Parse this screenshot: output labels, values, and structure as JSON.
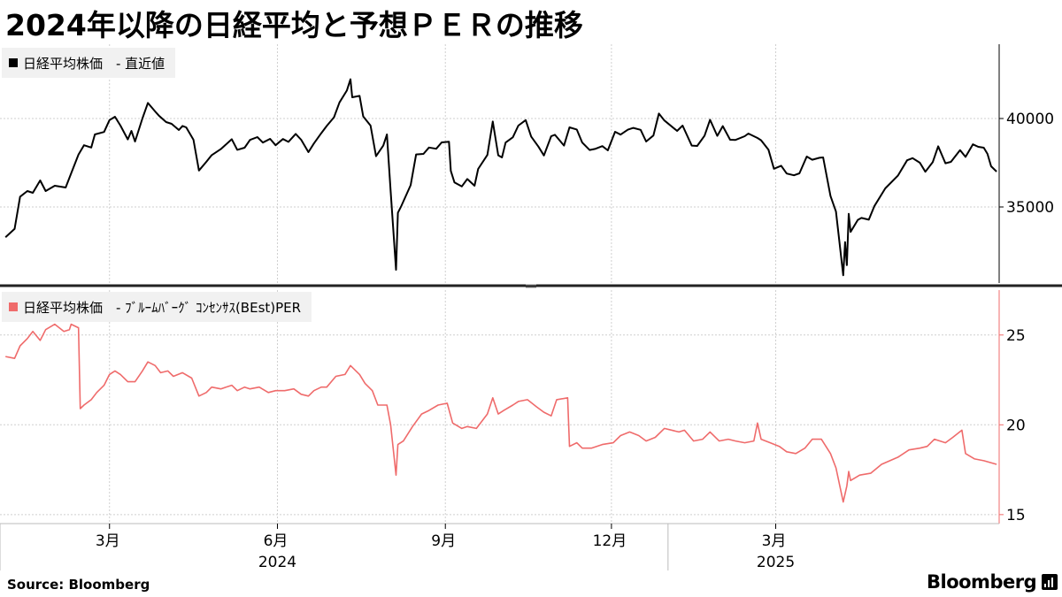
{
  "title": "2024年以降の日経平均と予想ＰＥＲの推移",
  "source": "Source:  Bloomberg",
  "brand": "Bloomberg",
  "colors": {
    "price": "#000000",
    "per": "#ef6b6b",
    "grid": "#cfcfcf",
    "legend_bg": "#f1f1f1"
  },
  "chart_data": [
    {
      "type": "line",
      "panel": "top",
      "legend": "日経平均株価　- 直近値",
      "series": [
        {
          "name": "日経平均株価　- 直近値",
          "color": "#000000"
        }
      ],
      "ylim": [
        30700,
        44200
      ],
      "yticks": [
        35000,
        40000
      ],
      "ytick_labels": [
        "35000",
        "40000"
      ],
      "points": [
        [
          "2024-01-04",
          33290
        ],
        [
          "2024-01-09",
          33760
        ],
        [
          "2024-01-12",
          35580
        ],
        [
          "2024-01-16",
          35900
        ],
        [
          "2024-01-19",
          35800
        ],
        [
          "2024-01-23",
          36500
        ],
        [
          "2024-01-26",
          35900
        ],
        [
          "2024-01-31",
          36200
        ],
        [
          "2024-02-06",
          36100
        ],
        [
          "2024-02-09",
          36900
        ],
        [
          "2024-02-13",
          37960
        ],
        [
          "2024-02-16",
          38490
        ],
        [
          "2024-02-20",
          38360
        ],
        [
          "2024-02-22",
          39100
        ],
        [
          "2024-02-27",
          39240
        ],
        [
          "2024-03-01",
          39910
        ],
        [
          "2024-03-04",
          40100
        ],
        [
          "2024-03-07",
          39600
        ],
        [
          "2024-03-11",
          38820
        ],
        [
          "2024-03-13",
          39300
        ],
        [
          "2024-03-15",
          38700
        ],
        [
          "2024-03-19",
          40000
        ],
        [
          "2024-03-22",
          40880
        ],
        [
          "2024-03-26",
          40400
        ],
        [
          "2024-03-28",
          40170
        ],
        [
          "2024-04-01",
          39800
        ],
        [
          "2024-04-04",
          39700
        ],
        [
          "2024-04-08",
          39350
        ],
        [
          "2024-04-10",
          39580
        ],
        [
          "2024-04-12",
          39500
        ],
        [
          "2024-04-16",
          38800
        ],
        [
          "2024-04-19",
          37060
        ],
        [
          "2024-04-23",
          37550
        ],
        [
          "2024-04-26",
          37930
        ],
        [
          "2024-05-01",
          38270
        ],
        [
          "2024-05-07",
          38830
        ],
        [
          "2024-05-10",
          38230
        ],
        [
          "2024-05-14",
          38350
        ],
        [
          "2024-05-17",
          38790
        ],
        [
          "2024-05-21",
          38950
        ],
        [
          "2024-05-24",
          38640
        ],
        [
          "2024-05-28",
          38850
        ],
        [
          "2024-05-31",
          38490
        ],
        [
          "2024-06-04",
          38840
        ],
        [
          "2024-06-07",
          38680
        ],
        [
          "2024-06-11",
          39130
        ],
        [
          "2024-06-14",
          38800
        ],
        [
          "2024-06-18",
          38100
        ],
        [
          "2024-06-21",
          38590
        ],
        [
          "2024-06-25",
          39170
        ],
        [
          "2024-06-28",
          39580
        ],
        [
          "2024-07-02",
          40070
        ],
        [
          "2024-07-05",
          40910
        ],
        [
          "2024-07-09",
          41580
        ],
        [
          "2024-07-11",
          42220
        ],
        [
          "2024-07-12",
          41200
        ],
        [
          "2024-07-16",
          41280
        ],
        [
          "2024-07-18",
          40120
        ],
        [
          "2024-07-22",
          39600
        ],
        [
          "2024-07-25",
          37870
        ],
        [
          "2024-07-29",
          38470
        ],
        [
          "2024-07-31",
          39100
        ],
        [
          "2024-08-02",
          35900
        ],
        [
          "2024-08-05",
          31450
        ],
        [
          "2024-08-06",
          34670
        ],
        [
          "2024-08-08",
          35080
        ],
        [
          "2024-08-13",
          36230
        ],
        [
          "2024-08-16",
          37970
        ],
        [
          "2024-08-20",
          38000
        ],
        [
          "2024-08-23",
          38360
        ],
        [
          "2024-08-27",
          38290
        ],
        [
          "2024-08-30",
          38650
        ],
        [
          "2024-09-03",
          38690
        ],
        [
          "2024-09-04",
          37040
        ],
        [
          "2024-09-06",
          36390
        ],
        [
          "2024-09-10",
          36160
        ],
        [
          "2024-09-13",
          36580
        ],
        [
          "2024-09-17",
          36200
        ],
        [
          "2024-09-19",
          37150
        ],
        [
          "2024-09-24",
          37940
        ],
        [
          "2024-09-27",
          39830
        ],
        [
          "2024-09-30",
          37920
        ],
        [
          "2024-10-02",
          37800
        ],
        [
          "2024-10-04",
          38640
        ],
        [
          "2024-10-08",
          38940
        ],
        [
          "2024-10-11",
          39600
        ],
        [
          "2024-10-15",
          39910
        ],
        [
          "2024-10-18",
          38980
        ],
        [
          "2024-10-22",
          38410
        ],
        [
          "2024-10-25",
          37910
        ],
        [
          "2024-10-29",
          39000
        ],
        [
          "2024-10-31",
          39080
        ],
        [
          "2024-11-05",
          38470
        ],
        [
          "2024-11-08",
          39500
        ],
        [
          "2024-11-12",
          39380
        ],
        [
          "2024-11-15",
          38640
        ],
        [
          "2024-11-19",
          38220
        ],
        [
          "2024-11-22",
          38280
        ],
        [
          "2024-11-26",
          38440
        ],
        [
          "2024-11-29",
          38200
        ],
        [
          "2024-12-03",
          39250
        ],
        [
          "2024-12-06",
          39090
        ],
        [
          "2024-12-10",
          39370
        ],
        [
          "2024-12-13",
          39470
        ],
        [
          "2024-12-17",
          39360
        ],
        [
          "2024-12-20",
          38700
        ],
        [
          "2024-12-24",
          39040
        ],
        [
          "2024-12-27",
          40280
        ],
        [
          "2024-12-30",
          39890
        ],
        [
          "2025-01-06",
          39300
        ],
        [
          "2025-01-09",
          39600
        ],
        [
          "2025-01-14",
          38470
        ],
        [
          "2025-01-17",
          38450
        ],
        [
          "2025-01-21",
          39030
        ],
        [
          "2025-01-24",
          39930
        ],
        [
          "2025-01-28",
          39020
        ],
        [
          "2025-01-31",
          39570
        ],
        [
          "2025-02-04",
          38800
        ],
        [
          "2025-02-07",
          38790
        ],
        [
          "2025-02-12",
          39000
        ],
        [
          "2025-02-14",
          39150
        ],
        [
          "2025-02-19",
          38900
        ],
        [
          "2025-02-21",
          38770
        ],
        [
          "2025-02-25",
          38240
        ],
        [
          "2025-02-28",
          37160
        ],
        [
          "2025-03-04",
          37330
        ],
        [
          "2025-03-07",
          36890
        ],
        [
          "2025-03-11",
          36790
        ],
        [
          "2025-03-14",
          36900
        ],
        [
          "2025-03-18",
          37850
        ],
        [
          "2025-03-21",
          37670
        ],
        [
          "2025-03-25",
          37780
        ],
        [
          "2025-03-27",
          37800
        ],
        [
          "2025-03-31",
          35620
        ],
        [
          "2025-04-03",
          34740
        ],
        [
          "2025-04-07",
          31140
        ],
        [
          "2025-04-08",
          33010
        ],
        [
          "2025-04-09",
          31710
        ],
        [
          "2025-04-10",
          34610
        ],
        [
          "2025-04-11",
          33590
        ],
        [
          "2025-04-15",
          34270
        ],
        [
          "2025-04-17",
          34380
        ],
        [
          "2025-04-21",
          34280
        ],
        [
          "2025-04-24",
          35040
        ],
        [
          "2025-04-30",
          36050
        ],
        [
          "2025-05-07",
          36780
        ],
        [
          "2025-05-12",
          37640
        ],
        [
          "2025-05-15",
          37760
        ],
        [
          "2025-05-19",
          37500
        ],
        [
          "2025-05-22",
          36990
        ],
        [
          "2025-05-26",
          37530
        ],
        [
          "2025-05-29",
          38430
        ],
        [
          "2025-06-02",
          37470
        ],
        [
          "2025-06-05",
          37550
        ],
        [
          "2025-06-10",
          38210
        ],
        [
          "2025-06-13",
          37830
        ],
        [
          "2025-06-17",
          38540
        ],
        [
          "2025-06-20",
          38400
        ],
        [
          "2025-06-23",
          38350
        ],
        [
          "2025-06-25",
          38000
        ],
        [
          "2025-06-27",
          37300
        ],
        [
          "2025-06-30",
          37000
        ]
      ]
    },
    {
      "type": "line",
      "panel": "bottom",
      "legend": "日経平均株価　- ﾌﾞﾙｰﾑﾊﾞｰｸﾞ ｺﾝｾﾝｻｽ(BEst)PER",
      "series": [
        {
          "name": "日経平均株価　- ﾌﾞﾙｰﾑﾊﾞｰｸﾞ ｺﾝｾﾝｻｽ(BEst)PER",
          "color": "#ef6b6b"
        }
      ],
      "ylim": [
        14.5,
        27.5
      ],
      "yticks": [
        15,
        20,
        25
      ],
      "ytick_labels": [
        "15",
        "20",
        "25"
      ],
      "points": [
        [
          "2024-01-04",
          23.8
        ],
        [
          "2024-01-09",
          23.7
        ],
        [
          "2024-01-12",
          24.4
        ],
        [
          "2024-01-16",
          24.8
        ],
        [
          "2024-01-19",
          25.2
        ],
        [
          "2024-01-23",
          24.7
        ],
        [
          "2024-01-26",
          25.3
        ],
        [
          "2024-01-31",
          25.6
        ],
        [
          "2024-02-05",
          25.2
        ],
        [
          "2024-02-08",
          25.3
        ],
        [
          "2024-02-09",
          25.6
        ],
        [
          "2024-02-13",
          25.4
        ],
        [
          "2024-02-14",
          20.9
        ],
        [
          "2024-02-16",
          21.1
        ],
        [
          "2024-02-20",
          21.4
        ],
        [
          "2024-02-23",
          21.8
        ],
        [
          "2024-02-27",
          22.2
        ],
        [
          "2024-03-01",
          22.8
        ],
        [
          "2024-03-04",
          23.0
        ],
        [
          "2024-03-07",
          22.8
        ],
        [
          "2024-03-11",
          22.4
        ],
        [
          "2024-03-15",
          22.4
        ],
        [
          "2024-03-19",
          23.0
        ],
        [
          "2024-03-22",
          23.5
        ],
        [
          "2024-03-26",
          23.3
        ],
        [
          "2024-03-29",
          22.9
        ],
        [
          "2024-04-02",
          23.0
        ],
        [
          "2024-04-05",
          22.7
        ],
        [
          "2024-04-10",
          22.9
        ],
        [
          "2024-04-15",
          22.6
        ],
        [
          "2024-04-19",
          21.6
        ],
        [
          "2024-04-23",
          21.8
        ],
        [
          "2024-04-26",
          22.1
        ],
        [
          "2024-05-01",
          22.0
        ],
        [
          "2024-05-07",
          22.2
        ],
        [
          "2024-05-10",
          21.9
        ],
        [
          "2024-05-14",
          22.1
        ],
        [
          "2024-05-17",
          22.0
        ],
        [
          "2024-05-22",
          22.1
        ],
        [
          "2024-05-27",
          21.8
        ],
        [
          "2024-05-31",
          21.9
        ],
        [
          "2024-06-05",
          21.9
        ],
        [
          "2024-06-10",
          22.0
        ],
        [
          "2024-06-14",
          21.7
        ],
        [
          "2024-06-18",
          21.6
        ],
        [
          "2024-06-21",
          21.9
        ],
        [
          "2024-06-25",
          22.1
        ],
        [
          "2024-06-28",
          22.1
        ],
        [
          "2024-07-03",
          22.7
        ],
        [
          "2024-07-08",
          22.8
        ],
        [
          "2024-07-11",
          23.3
        ],
        [
          "2024-07-16",
          22.8
        ],
        [
          "2024-07-19",
          22.3
        ],
        [
          "2024-07-23",
          21.9
        ],
        [
          "2024-07-26",
          21.1
        ],
        [
          "2024-07-31",
          21.1
        ],
        [
          "2024-08-02",
          20.0
        ],
        [
          "2024-08-05",
          17.2
        ],
        [
          "2024-08-06",
          18.9
        ],
        [
          "2024-08-09",
          19.1
        ],
        [
          "2024-08-14",
          19.9
        ],
        [
          "2024-08-19",
          20.6
        ],
        [
          "2024-08-23",
          20.8
        ],
        [
          "2024-08-28",
          21.1
        ],
        [
          "2024-09-02",
          21.2
        ],
        [
          "2024-09-05",
          20.1
        ],
        [
          "2024-09-10",
          19.8
        ],
        [
          "2024-09-13",
          19.9
        ],
        [
          "2024-09-18",
          19.8
        ],
        [
          "2024-09-24",
          20.6
        ],
        [
          "2024-09-27",
          21.5
        ],
        [
          "2024-09-30",
          20.6
        ],
        [
          "2024-10-03",
          20.8
        ],
        [
          "2024-10-08",
          21.1
        ],
        [
          "2024-10-11",
          21.3
        ],
        [
          "2024-10-16",
          21.4
        ],
        [
          "2024-10-21",
          21.0
        ],
        [
          "2024-10-25",
          20.7
        ],
        [
          "2024-10-29",
          20.5
        ],
        [
          "2024-11-01",
          21.4
        ],
        [
          "2024-11-07",
          21.5
        ],
        [
          "2024-11-08",
          18.8
        ],
        [
          "2024-11-12",
          19.0
        ],
        [
          "2024-11-15",
          18.7
        ],
        [
          "2024-11-20",
          18.7
        ],
        [
          "2024-11-26",
          18.9
        ],
        [
          "2024-12-02",
          19.0
        ],
        [
          "2024-12-06",
          19.4
        ],
        [
          "2024-12-11",
          19.6
        ],
        [
          "2024-12-16",
          19.4
        ],
        [
          "2024-12-20",
          19.1
        ],
        [
          "2024-12-25",
          19.3
        ],
        [
          "2024-12-30",
          19.8
        ],
        [
          "2025-01-07",
          19.6
        ],
        [
          "2025-01-10",
          19.7
        ],
        [
          "2025-01-15",
          19.1
        ],
        [
          "2025-01-20",
          19.2
        ],
        [
          "2025-01-24",
          19.6
        ],
        [
          "2025-01-29",
          19.1
        ],
        [
          "2025-02-03",
          19.2
        ],
        [
          "2025-02-07",
          19.1
        ],
        [
          "2025-02-12",
          19.0
        ],
        [
          "2025-02-17",
          19.1
        ],
        [
          "2025-02-19",
          20.1
        ],
        [
          "2025-02-21",
          19.2
        ],
        [
          "2025-02-26",
          19.0
        ],
        [
          "2025-03-03",
          18.8
        ],
        [
          "2025-03-07",
          18.5
        ],
        [
          "2025-03-12",
          18.4
        ],
        [
          "2025-03-17",
          18.7
        ],
        [
          "2025-03-21",
          19.2
        ],
        [
          "2025-03-26",
          19.2
        ],
        [
          "2025-03-31",
          18.4
        ],
        [
          "2025-04-03",
          17.6
        ],
        [
          "2025-04-07",
          15.7
        ],
        [
          "2025-04-09",
          16.6
        ],
        [
          "2025-04-10",
          17.4
        ],
        [
          "2025-04-11",
          16.9
        ],
        [
          "2025-04-16",
          17.2
        ],
        [
          "2025-04-22",
          17.3
        ],
        [
          "2025-04-28",
          17.8
        ],
        [
          "2025-05-07",
          18.2
        ],
        [
          "2025-05-13",
          18.6
        ],
        [
          "2025-05-19",
          18.7
        ],
        [
          "2025-05-23",
          18.8
        ],
        [
          "2025-05-27",
          19.2
        ],
        [
          "2025-06-02",
          19.0
        ],
        [
          "2025-06-06",
          19.3
        ],
        [
          "2025-06-11",
          19.7
        ],
        [
          "2025-06-13",
          18.4
        ],
        [
          "2025-06-18",
          18.1
        ],
        [
          "2025-06-23",
          18.0
        ],
        [
          "2025-06-30",
          17.8
        ]
      ]
    }
  ],
  "xaxis": {
    "range": [
      "2024-01-01",
      "2025-07-31"
    ],
    "ticks": [
      {
        "date": "2024-03-01",
        "label": "3月"
      },
      {
        "date": "2024-06-01",
        "label": "6月"
      },
      {
        "date": "2024-09-01",
        "label": "9月"
      },
      {
        "date": "2024-12-01",
        "label": "12月"
      },
      {
        "date": "2025-03-01",
        "label": "3月"
      }
    ],
    "year_ticks": [
      {
        "date": "2024-01-01",
        "label": "2024"
      },
      {
        "date": "2025-01-01",
        "label": "2025"
      }
    ],
    "year_labels": [
      {
        "date": "2024-06-01",
        "label": "2024"
      },
      {
        "date": "2025-03-01",
        "label": "2025"
      }
    ]
  }
}
